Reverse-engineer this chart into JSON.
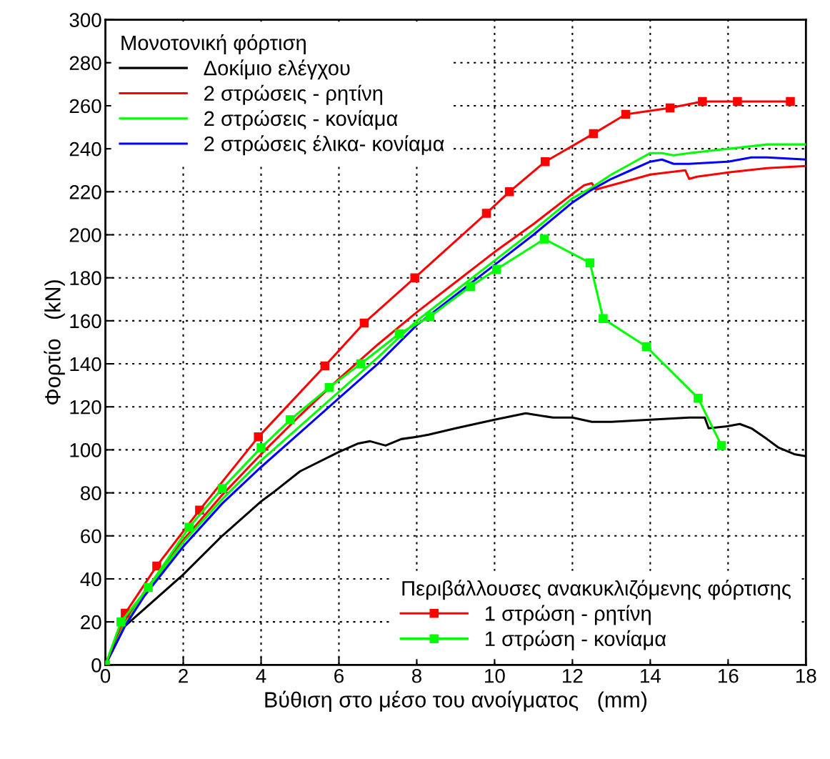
{
  "chart_data": {
    "type": "line",
    "xlabel": "Βύθιση στο μέσο του ανοίγματος   (mm)",
    "ylabel": "Φορτίο   (kN)",
    "legend_title": [
      "Μονοτονική φόρτιση",
      "Περιβάλλουσες ανακυκλιζόμενης φόρτισης"
    ],
    "legend": [
      "top left",
      "bottom right"
    ],
    "xlim": [
      0,
      18
    ],
    "xticks": [
      0,
      2,
      4,
      6,
      8,
      10,
      12,
      14,
      16,
      18
    ],
    "ylim": [
      0,
      300
    ],
    "yticks": [
      0,
      20,
      40,
      60,
      80,
      100,
      120,
      140,
      160,
      180,
      200,
      220,
      240,
      260,
      280,
      300
    ],
    "grid": true,
    "series": [
      {
        "name": "Δοκίμιο ελέγχου",
        "color": "#000000",
        "marker": "none",
        "x": [
          0,
          0.5,
          1,
          2,
          3,
          4,
          4.3,
          5,
          6,
          6.5,
          6.8,
          7.2,
          7.6,
          8,
          8.3,
          9,
          10,
          10.8,
          11.5,
          12,
          12.5,
          13,
          14,
          15,
          15.4,
          15.5,
          16,
          16.3,
          16.6,
          17,
          17.3,
          17.7,
          18
        ],
        "values": [
          0,
          18,
          26,
          42,
          60,
          76,
          80,
          90,
          99,
          103,
          104,
          102,
          105,
          106,
          107,
          110,
          114,
          117,
          115,
          115,
          113,
          113,
          114,
          115,
          115,
          110,
          111,
          112,
          110,
          105,
          101,
          98,
          97
        ]
      },
      {
        "name": "2 στρώσεις - ρητίνη",
        "color": "#ff0000",
        "marker": "none",
        "x": [
          0,
          0.5,
          1,
          2,
          3,
          4,
          5,
          6,
          7,
          8,
          9,
          10,
          11,
          12,
          12.3,
          12.5,
          12.6,
          13,
          14,
          14.9,
          15,
          15.2,
          16,
          17,
          18
        ],
        "values": [
          0,
          20,
          34,
          58,
          79,
          98,
          116,
          133,
          149,
          164,
          178,
          192,
          205,
          219,
          223,
          224,
          221,
          223,
          228,
          230,
          226,
          227,
          229,
          231,
          232
        ]
      },
      {
        "name": "2 στρώσεις - κονίαμα",
        "color": "#00ff00",
        "marker": "none",
        "x": [
          0,
          0.5,
          1,
          2,
          3,
          4,
          5,
          6,
          7,
          8,
          9,
          10,
          11,
          12,
          12.5,
          13,
          13.5,
          14,
          14.3,
          14.6,
          15,
          16,
          17,
          18
        ],
        "values": [
          0,
          19,
          33,
          57,
          77,
          95,
          111,
          127,
          143,
          160,
          174,
          188,
          202,
          217,
          222,
          228,
          233,
          238,
          238,
          237,
          238,
          240,
          242,
          242
        ]
      },
      {
        "name": "2 στρώσεις έλικα- κονίαμα",
        "color": "#0000ff",
        "marker": "none",
        "x": [
          0,
          0.5,
          1,
          2,
          3,
          4,
          5,
          6,
          7,
          8,
          9,
          10,
          11,
          12,
          12.5,
          13,
          13.5,
          14,
          14.3,
          14.6,
          15,
          16,
          16.6,
          17,
          18
        ],
        "values": [
          0,
          18,
          32,
          55,
          75,
          92,
          108,
          124,
          140,
          158,
          172,
          186,
          200,
          215,
          221,
          226,
          230,
          234,
          235,
          233,
          233,
          234,
          236,
          236,
          235
        ]
      },
      {
        "name": "1 στρώση - ρητίνη",
        "color": "#ff0000",
        "marker": "square",
        "x": [
          0,
          0.51,
          1.32,
          2.42,
          3.93,
          5.64,
          6.65,
          7.95,
          9.79,
          10.38,
          11.3,
          12.54,
          13.37,
          14.51,
          15.34,
          16.24,
          17.6
        ],
        "values": [
          0,
          24,
          46,
          72,
          106,
          139,
          159,
          180,
          210,
          220,
          234,
          247,
          256,
          259,
          262,
          262,
          262
        ]
      },
      {
        "name": "1 στρώση - κονίαμα",
        "color": "#00ff00",
        "marker": "square",
        "x": [
          0,
          0.4,
          1.1,
          2.15,
          3.0,
          4.0,
          4.75,
          5.75,
          6.56,
          7.55,
          8.34,
          9.38,
          10.05,
          11.28,
          12.45,
          12.79,
          13.9,
          15.23,
          15.83
        ],
        "values": [
          0,
          20,
          36,
          64,
          82,
          101,
          114,
          129,
          140,
          154,
          162,
          176,
          184,
          198,
          187,
          161,
          148,
          124,
          102
        ]
      }
    ]
  }
}
